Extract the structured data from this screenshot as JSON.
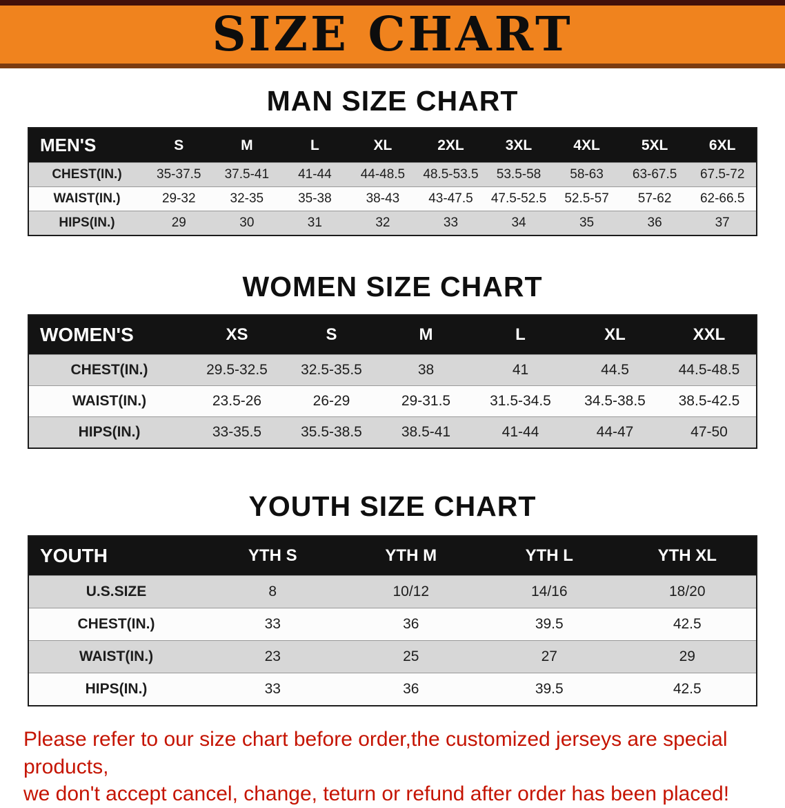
{
  "banner": {
    "title": "SIZE CHART",
    "bg_color": "#f0831e"
  },
  "tables": [
    {
      "id": "men",
      "heading": "MAN SIZE CHART",
      "header": [
        "MEN'S",
        "S",
        "M",
        "L",
        "XL",
        "2XL",
        "3XL",
        "4XL",
        "5XL",
        "6XL"
      ],
      "rows": [
        [
          "CHEST(IN.)",
          "35-37.5",
          "37.5-41",
          "41-44",
          "44-48.5",
          "48.5-53.5",
          "53.5-58",
          "58-63",
          "63-67.5",
          "67.5-72"
        ],
        [
          "WAIST(IN.)",
          "29-32",
          "32-35",
          "35-38",
          "38-43",
          "43-47.5",
          "47.5-52.5",
          "52.5-57",
          "57-62",
          "62-66.5"
        ],
        [
          "HIPS(IN.)",
          "29",
          "30",
          "31",
          "32",
          "33",
          "34",
          "35",
          "36",
          "37"
        ]
      ]
    },
    {
      "id": "women",
      "heading": "WOMEN SIZE CHART",
      "header": [
        "WOMEN'S",
        "XS",
        "S",
        "M",
        "L",
        "XL",
        "XXL"
      ],
      "rows": [
        [
          "CHEST(IN.)",
          "29.5-32.5",
          "32.5-35.5",
          "38",
          "41",
          "44.5",
          "44.5-48.5"
        ],
        [
          "WAIST(IN.)",
          "23.5-26",
          "26-29",
          "29-31.5",
          "31.5-34.5",
          "34.5-38.5",
          "38.5-42.5"
        ],
        [
          "HIPS(IN.)",
          "33-35.5",
          "35.5-38.5",
          "38.5-41",
          "41-44",
          "44-47",
          "47-50"
        ]
      ]
    },
    {
      "id": "youth",
      "heading": "YOUTH SIZE CHART",
      "header": [
        "YOUTH",
        "YTH S",
        "YTH M",
        "YTH L",
        "YTH XL"
      ],
      "rows": [
        [
          "U.S.SIZE",
          "8",
          "10/12",
          "14/16",
          "18/20"
        ],
        [
          "CHEST(IN.)",
          "33",
          "36",
          "39.5",
          "42.5"
        ],
        [
          "WAIST(IN.)",
          "23",
          "25",
          "27",
          "29"
        ],
        [
          "HIPS(IN.)",
          "33",
          "36",
          "39.5",
          "42.5"
        ]
      ]
    }
  ],
  "disclaimer": {
    "color": "#c51402",
    "line1": "Please refer to our size chart before order,the customized jerseys are special products,",
    "line2": "we don't accept cancel, change, teturn or refund after order has been placed!"
  }
}
